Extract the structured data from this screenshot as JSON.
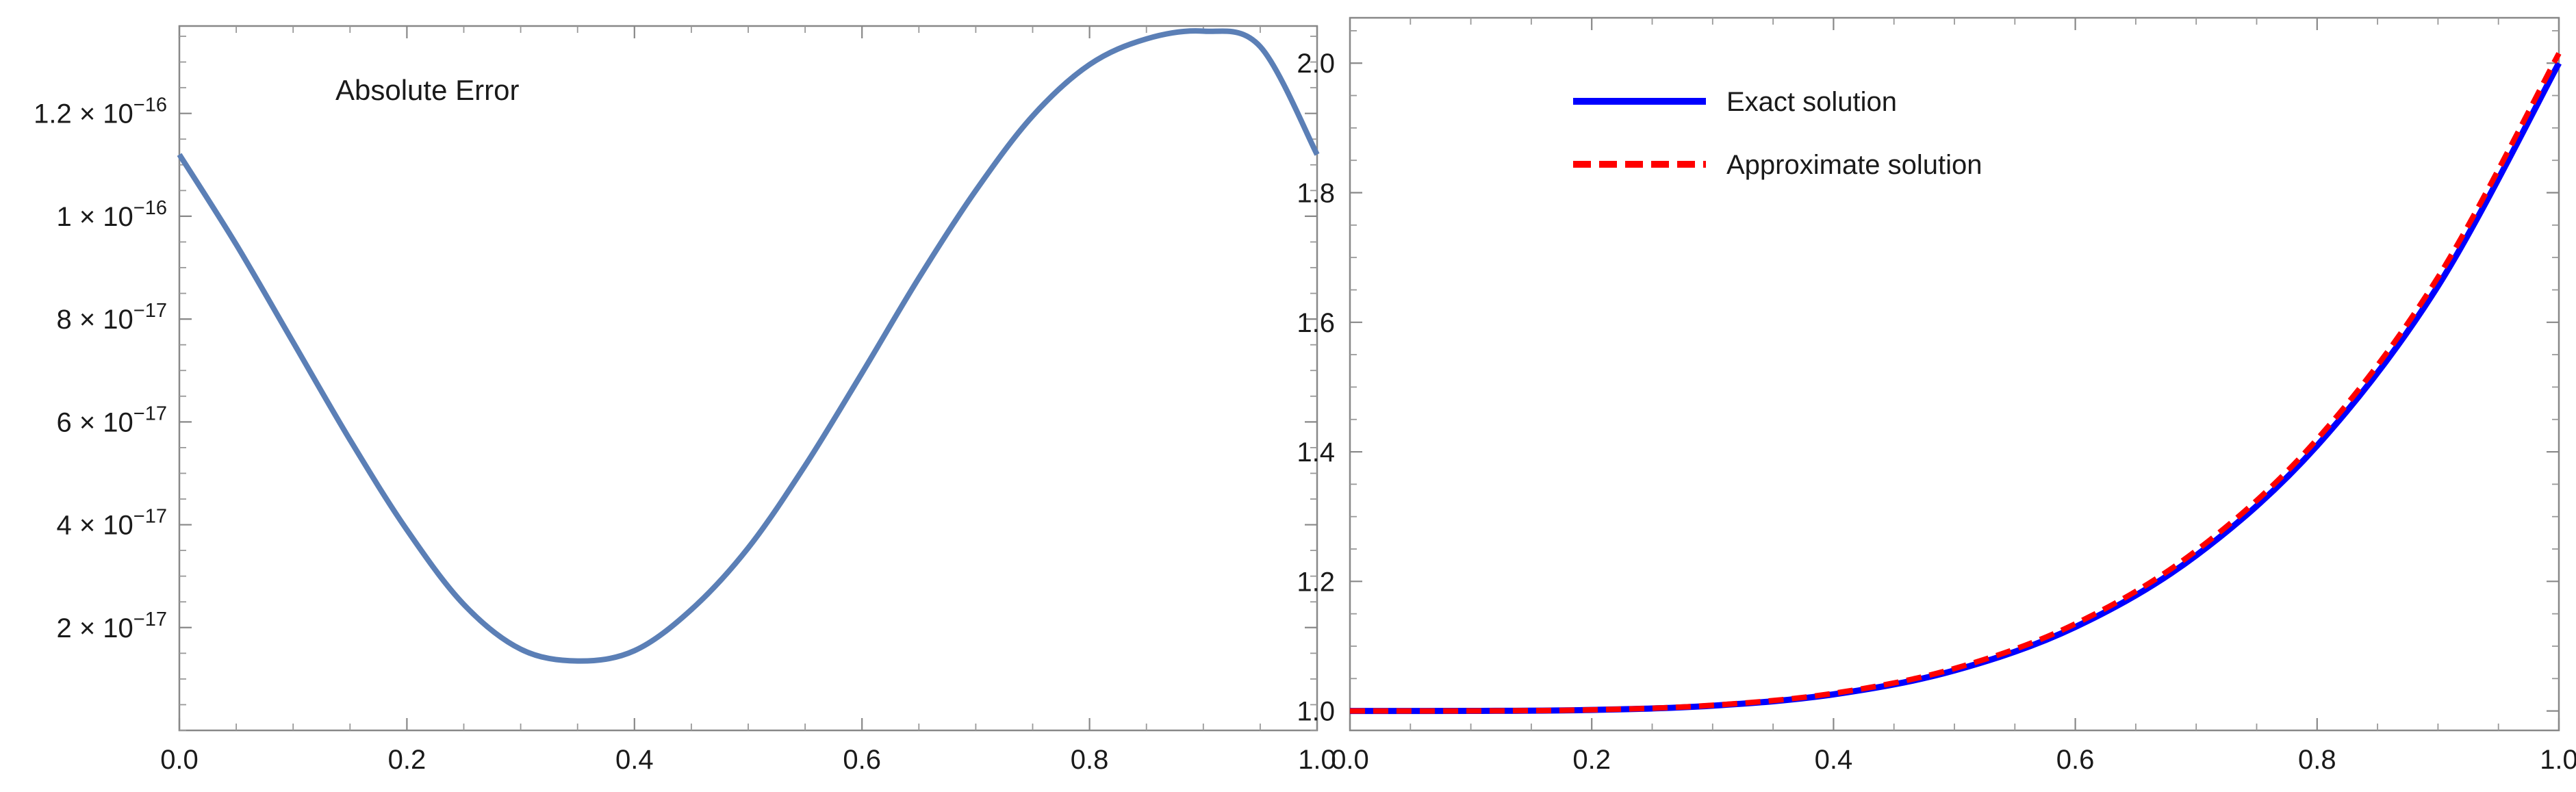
{
  "chart_data": [
    {
      "type": "line",
      "title": "",
      "xlabel": "",
      "ylabel": "",
      "annotation": "Absolute Error",
      "xlim": [
        0,
        1
      ],
      "ylim": [
        0,
        1.37e-16
      ],
      "grid": false,
      "frame": true,
      "x_ticks": [
        {
          "value": 0.0,
          "label": "0.0"
        },
        {
          "value": 0.2,
          "label": "0.2"
        },
        {
          "value": 0.4,
          "label": "0.4"
        },
        {
          "value": 0.6,
          "label": "0.6"
        },
        {
          "value": 0.8,
          "label": "0.8"
        },
        {
          "value": 1.0,
          "label": "1.0"
        }
      ],
      "y_ticks": [
        {
          "value": 2e-17,
          "mantissa": "2",
          "exponent": "-17"
        },
        {
          "value": 4e-17,
          "mantissa": "4",
          "exponent": "-17"
        },
        {
          "value": 6e-17,
          "mantissa": "6",
          "exponent": "-17"
        },
        {
          "value": 8e-17,
          "mantissa": "8",
          "exponent": "-17"
        },
        {
          "value": 1e-16,
          "mantissa": "1",
          "exponent": "-16"
        },
        {
          "value": 1.2e-16,
          "mantissa": "1.2",
          "exponent": "-16"
        }
      ],
      "series": [
        {
          "color": "#5b7fb6",
          "style": "solid",
          "x": [
            0.0,
            0.05,
            0.1,
            0.15,
            0.2,
            0.25,
            0.3,
            0.35,
            0.4,
            0.45,
            0.5,
            0.55,
            0.6,
            0.65,
            0.7,
            0.75,
            0.8,
            0.85,
            0.9,
            0.95,
            1.0
          ],
          "y": [
            1.12e-16,
            9.45e-17,
            7.55e-17,
            5.65e-17,
            3.9e-17,
            2.45e-17,
            1.58e-17,
            1.35e-17,
            1.55e-17,
            2.35e-17,
            3.55e-17,
            5.15e-17,
            6.95e-17,
            8.8e-17,
            1.05e-16,
            1.195e-16,
            1.295e-16,
            1.345e-16,
            1.36e-16,
            1.33e-16,
            1.12e-16
          ]
        }
      ]
    },
    {
      "type": "line",
      "title": "",
      "xlabel": "",
      "ylabel": "",
      "xlim": [
        0,
        1
      ],
      "ylim": [
        0.97,
        2.07
      ],
      "grid": false,
      "frame": true,
      "legend_position": "top-left",
      "x_ticks": [
        {
          "value": 0.0,
          "label": "0.0"
        },
        {
          "value": 0.2,
          "label": "0.2"
        },
        {
          "value": 0.4,
          "label": "0.4"
        },
        {
          "value": 0.6,
          "label": "0.6"
        },
        {
          "value": 0.8,
          "label": "0.8"
        },
        {
          "value": 1.0,
          "label": "1.0"
        }
      ],
      "y_ticks": [
        {
          "value": 1.0,
          "label": "1.0"
        },
        {
          "value": 1.2,
          "label": "1.2"
        },
        {
          "value": 1.4,
          "label": "1.4"
        },
        {
          "value": 1.6,
          "label": "1.6"
        },
        {
          "value": 1.8,
          "label": "1.8"
        },
        {
          "value": 2.0,
          "label": "2.0"
        }
      ],
      "series": [
        {
          "name": "Exact solution",
          "color": "#0000ff",
          "style": "solid",
          "x": [
            0.0,
            0.1,
            0.2,
            0.3,
            0.4,
            0.5,
            0.6,
            0.7,
            0.8,
            0.9,
            1.0
          ],
          "y": [
            1.0,
            1.0001,
            1.0016,
            1.0081,
            1.0256,
            1.0625,
            1.1296,
            1.2401,
            1.4096,
            1.6561,
            2.0
          ]
        },
        {
          "name": "Approximate solution",
          "color": "#ff0000",
          "style": "dashed",
          "x": [
            0.0,
            0.1,
            0.2,
            0.3,
            0.4,
            0.5,
            0.6,
            0.7,
            0.8,
            0.9,
            1.0
          ],
          "y": [
            1.0,
            1.0001,
            1.0018,
            1.0088,
            1.0272,
            1.0655,
            1.1345,
            1.2475,
            1.4195,
            1.6695,
            2.015
          ]
        }
      ]
    }
  ]
}
